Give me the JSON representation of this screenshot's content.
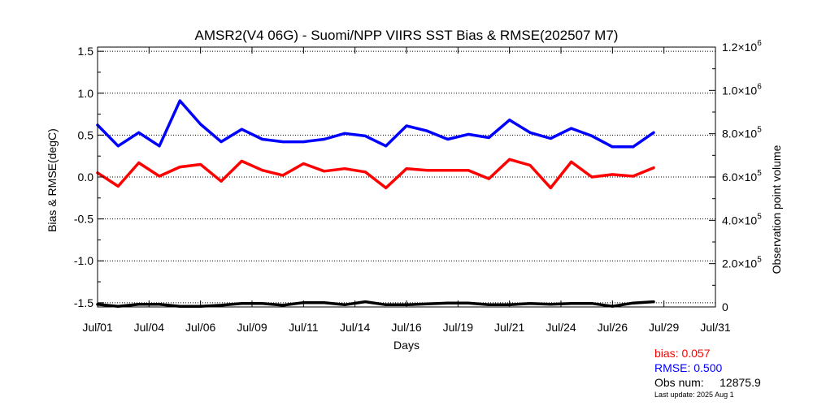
{
  "chart_data": {
    "type": "line",
    "title": "AMSR2(V4 06G) - Suomi/NPP VIIRS SST Bias & RMSE(202507 M7)",
    "xlabel": "Days",
    "ylabel": "Bias & RMSE(degC)",
    "y2label": "Observation point volume",
    "x_tick_labels": [
      "Jul/01",
      "Jul/04",
      "Jul/06",
      "Jul/09",
      "Jul/11",
      "Jul/14",
      "Jul/16",
      "Jul/19",
      "Jul/21",
      "Jul/24",
      "Jul/26",
      "Jul/29",
      "Jul/31"
    ],
    "x_tick_days": [
      1,
      3.5,
      6,
      8.5,
      11,
      13.5,
      16,
      18.5,
      21,
      23.5,
      26,
      28.5,
      31
    ],
    "xlim": [
      1,
      31
    ],
    "ylim": [
      -1.55,
      1.55
    ],
    "y_ticks": [
      1.5,
      1.0,
      0.5,
      0.0,
      -0.5,
      -1.0,
      -1.5
    ],
    "y_tick_labels": [
      "1.5",
      "1.0",
      "0.5",
      "0.0",
      "-0.5",
      "-1.0",
      "-1.5"
    ],
    "y2lim": [
      0,
      1200000
    ],
    "y2_ticks": [
      {
        "value": 1200000,
        "mant": "1.2×10",
        "exp": "6"
      },
      {
        "value": 1000000,
        "mant": "1.0×10",
        "exp": "6"
      },
      {
        "value": 800000,
        "mant": "8.0×10",
        "exp": "5"
      },
      {
        "value": 600000,
        "mant": "6.0×10",
        "exp": "5"
      },
      {
        "value": 400000,
        "mant": "4.0×10",
        "exp": "5"
      },
      {
        "value": 200000,
        "mant": "2.0×10",
        "exp": "5"
      },
      {
        "value": 0,
        "mant": "0",
        "exp": ""
      }
    ],
    "grid": true,
    "series": [
      {
        "name": "bias",
        "color": "#ff0000",
        "axis": "left",
        "x": [
          1,
          2,
          3,
          4,
          5,
          6,
          7,
          8,
          9,
          10,
          11,
          12,
          13,
          14,
          15,
          16,
          17,
          18,
          19,
          20,
          21,
          22,
          23,
          24,
          25,
          26,
          27,
          28
        ],
        "values": [
          0.05,
          -0.11,
          0.17,
          0.01,
          0.12,
          0.15,
          -0.05,
          0.19,
          0.08,
          0.02,
          0.16,
          0.07,
          0.1,
          0.06,
          -0.13,
          0.1,
          0.08,
          0.08,
          0.08,
          -0.02,
          0.21,
          0.14,
          -0.13,
          0.18,
          0.0,
          0.03,
          0.01,
          0.11
        ]
      },
      {
        "name": "RMSE",
        "color": "#0000ff",
        "axis": "left",
        "x": [
          1,
          2,
          3,
          4,
          5,
          6,
          7,
          8,
          9,
          10,
          11,
          12,
          13,
          14,
          15,
          16,
          17,
          18,
          19,
          20,
          21,
          22,
          23,
          24,
          25,
          26,
          27,
          28
        ],
        "values": [
          0.62,
          0.37,
          0.53,
          0.37,
          0.91,
          0.63,
          0.42,
          0.57,
          0.45,
          0.42,
          0.42,
          0.45,
          0.52,
          0.49,
          0.37,
          0.61,
          0.55,
          0.45,
          0.51,
          0.47,
          0.68,
          0.53,
          0.46,
          0.58,
          0.49,
          0.36,
          0.36,
          0.53
        ]
      },
      {
        "name": "Observation point volume",
        "color": "#000000",
        "axis": "right",
        "x": [
          1,
          2,
          3,
          4,
          5,
          6,
          7,
          8,
          9,
          10,
          11,
          12,
          13,
          14,
          15,
          16,
          17,
          18,
          19,
          20,
          21,
          22,
          23,
          24,
          25,
          26,
          27,
          28
        ],
        "values": [
          12000,
          3000,
          12000,
          12000,
          3000,
          3000,
          8000,
          16000,
          16000,
          8000,
          20000,
          20000,
          10000,
          24000,
          10000,
          10000,
          14000,
          18000,
          18000,
          10000,
          10000,
          16000,
          12000,
          16000,
          16000,
          3000,
          18000,
          24000
        ]
      }
    ]
  },
  "stats": {
    "bias": "bias: 0.057",
    "rmse": "RMSE: 0.500",
    "obs": "Obs num:     12875.9",
    "updated": "Last update: 2025 Aug  1"
  }
}
